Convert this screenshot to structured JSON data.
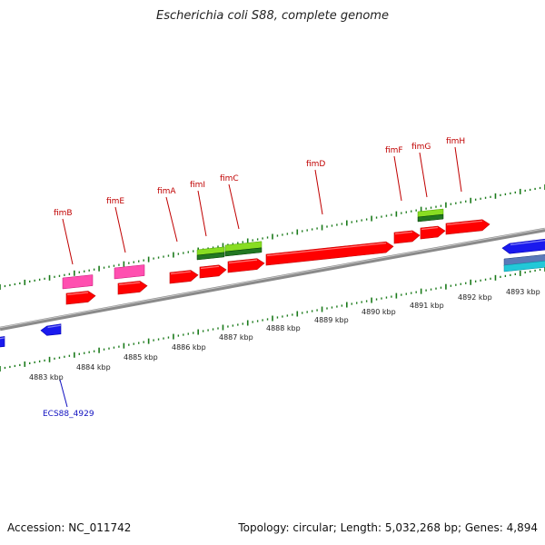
{
  "header": {
    "title": "Escherichia coli S88, complete genome"
  },
  "footer": {
    "accession": "Accession: NC_011742",
    "topology": "Topology: circular; Length: 5,032,268 bp; Genes: 4,894"
  },
  "map": {
    "region_kbp": [
      4882.5,
      4894
    ],
    "scale_labels": [
      "4883 kbp",
      "4884 kbp",
      "4885 kbp",
      "4886 kbp",
      "4887 kbp",
      "4888 kbp",
      "4889 kbp",
      "4890 kbp",
      "4891 kbp",
      "4892 kbp",
      "4893 kbp"
    ],
    "colors": {
      "backbone": "#8a8a8a",
      "ticks": "#1a7a1a",
      "gene_label": "#c00000",
      "locus_label": "#1010c0",
      "forward_cds": "#ff0000",
      "misc_feature_pink": "#ff4fb0",
      "misc_feature_green": "#88dd22",
      "dark_green": "#227722",
      "reverse_cds": "#1a1aee",
      "cyan_feature": "#22c8d8",
      "slate_feature": "#5a7ab8"
    },
    "gene_labels": [
      {
        "name": "fimB"
      },
      {
        "name": "fimE"
      },
      {
        "name": "fimA"
      },
      {
        "name": "fimI"
      },
      {
        "name": "fimC"
      },
      {
        "name": "fimD"
      },
      {
        "name": "fimF"
      },
      {
        "name": "fimG"
      },
      {
        "name": "fimH"
      }
    ],
    "locus_labels": [
      {
        "name": "ECS88_4929"
      }
    ]
  }
}
